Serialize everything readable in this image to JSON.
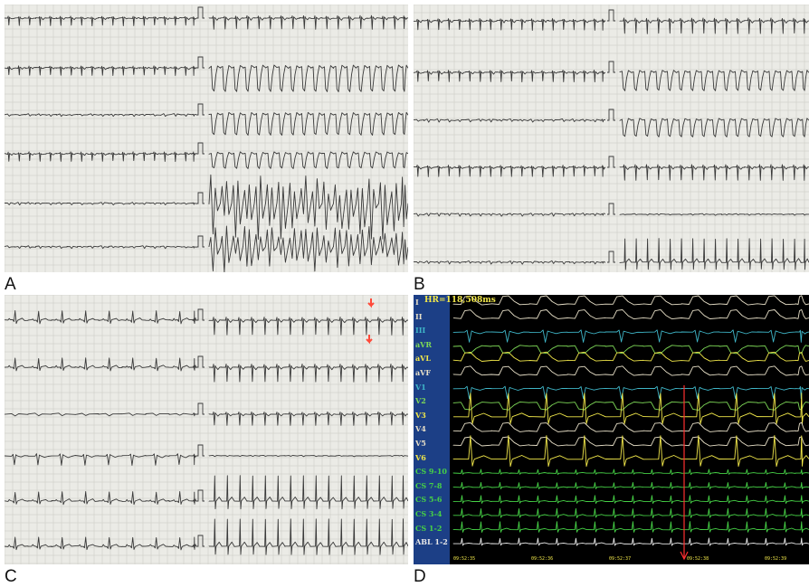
{
  "figure": {
    "panels": [
      {
        "id": "A",
        "label": "A"
      },
      {
        "id": "B",
        "label": "B"
      },
      {
        "id": "C",
        "label": "C"
      },
      {
        "id": "D",
        "label": "D"
      }
    ]
  },
  "monitor": {
    "hr_readout": "HR=118,508ms",
    "channels": [
      {
        "label": "I",
        "color": "#e8e0c8"
      },
      {
        "label": "II",
        "color": "#e8e0c8"
      },
      {
        "label": "III",
        "color": "#3fb6c8"
      },
      {
        "label": "aVR",
        "color": "#7ed957"
      },
      {
        "label": "aVL",
        "color": "#f2e84a"
      },
      {
        "label": "aVF",
        "color": "#e8e0c8"
      },
      {
        "label": "V1",
        "color": "#3fb6c8"
      },
      {
        "label": "V2",
        "color": "#7ed957"
      },
      {
        "label": "V3",
        "color": "#f2e84a"
      },
      {
        "label": "V4",
        "color": "#e8e0c8"
      },
      {
        "label": "V5",
        "color": "#e8e0c8"
      },
      {
        "label": "V6",
        "color": "#f2e84a"
      },
      {
        "label": "CS 9-10",
        "color": "#46d146"
      },
      {
        "label": "CS 7-8",
        "color": "#46d146"
      },
      {
        "label": "CS 5-6",
        "color": "#46d146"
      },
      {
        "label": "CS 3-4",
        "color": "#46d146"
      },
      {
        "label": "CS 1-2",
        "color": "#46d146"
      },
      {
        "label": "ABL 1-2",
        "color": "#e8e8e8"
      }
    ],
    "timestamps": [
      "09:52:35",
      "09:52:36",
      "09:52:37",
      "09:52:38",
      "09:52:39"
    ],
    "marker_color": "#ff3030"
  },
  "colors": {
    "paper": "#ebebe6",
    "grid": "#c9c9c2",
    "trace": "#3a3a3a",
    "arrow": "#ff4a3a"
  }
}
